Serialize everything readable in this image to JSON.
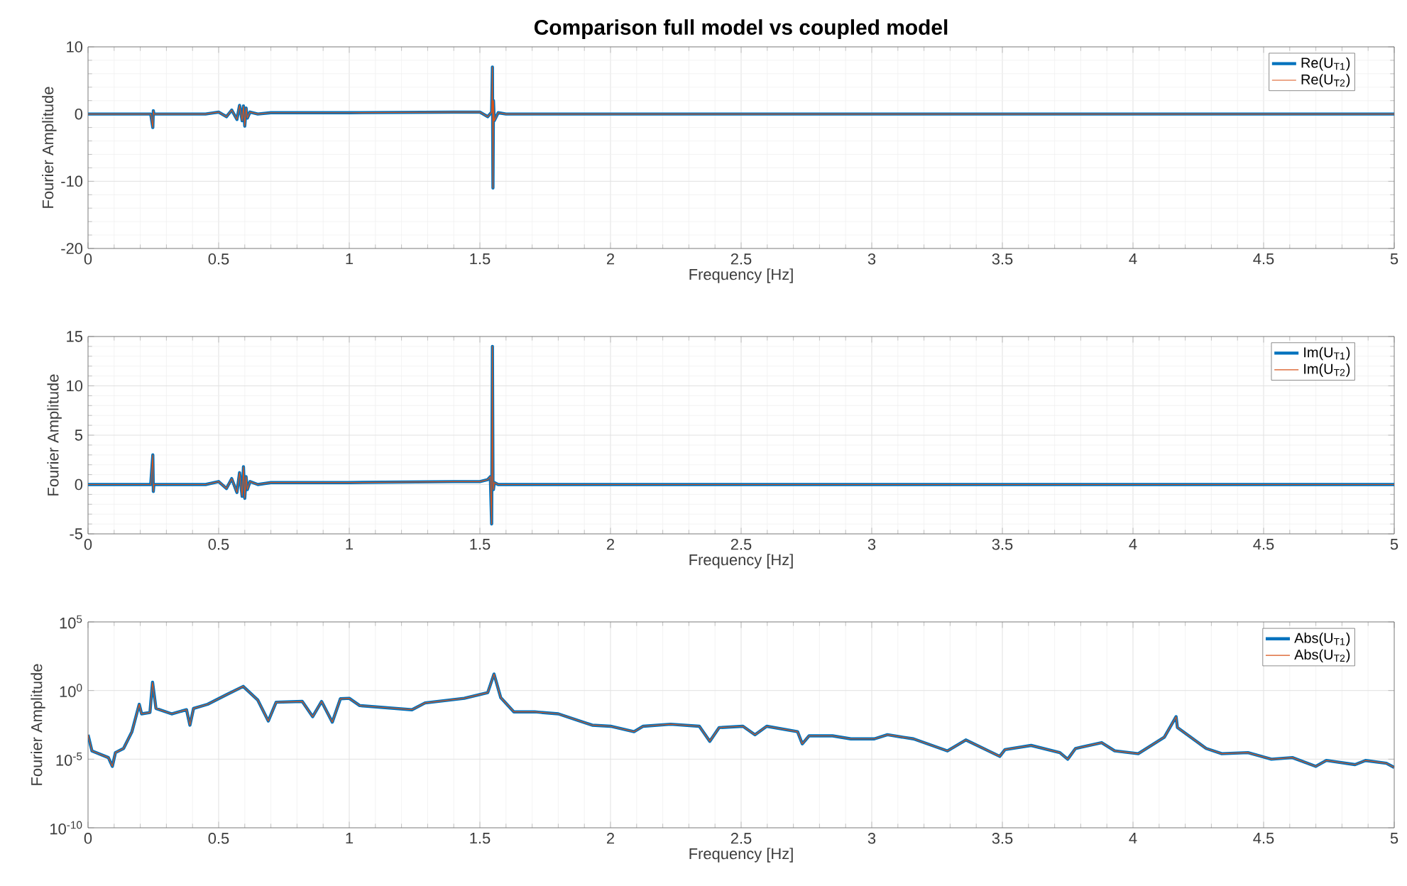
{
  "chart_data": [
    {
      "type": "line",
      "title": "Comparison full model vs coupled model",
      "xlabel": "Frequency [Hz]",
      "ylabel": "Fourier Amplitude",
      "xlim": [
        0,
        5
      ],
      "ylim": [
        -20,
        10
      ],
      "xticks": [
        0,
        0.5,
        1,
        1.5,
        2,
        2.5,
        3,
        3.5,
        4,
        4.5,
        5
      ],
      "yticks": [
        -20,
        -10,
        0,
        10
      ],
      "grid": true,
      "legend": "top right",
      "marker": "none",
      "line_style": "solid",
      "x": [
        0,
        0.24,
        0.248,
        0.25,
        0.252,
        0.26,
        0.45,
        0.5,
        0.53,
        0.55,
        0.57,
        0.58,
        0.59,
        0.595,
        0.6,
        0.605,
        0.61,
        0.62,
        0.65,
        0.7,
        1.0,
        1.4,
        1.5,
        1.53,
        1.545,
        1.548,
        1.55,
        1.552,
        1.555,
        1.57,
        1.6,
        2,
        3,
        4,
        5
      ],
      "series": [
        {
          "name": "Re(U$_{T1}$)",
          "color": "#0072bd",
          "values": [
            0,
            0,
            -2,
            0.5,
            0,
            0,
            0,
            0.3,
            -0.4,
            0.6,
            -0.8,
            1.3,
            -1.0,
            1.2,
            -1.8,
            0.9,
            -0.6,
            0.3,
            0,
            0.2,
            0.2,
            0.3,
            0.3,
            -0.4,
            0.3,
            7,
            -11,
            2,
            -1,
            0.2,
            0,
            0,
            0,
            0,
            0
          ]
        },
        {
          "name": "Re(U$_{T2}$)",
          "color": "#d95319",
          "values": [
            0,
            0,
            -2,
            0.5,
            0,
            0,
            0,
            0.3,
            -0.4,
            0.6,
            -0.8,
            1.3,
            -1.0,
            1.2,
            -1.8,
            0.9,
            -0.6,
            0.3,
            0,
            0.2,
            0.2,
            0.3,
            0.3,
            -0.4,
            0.3,
            7,
            -11,
            2,
            -1,
            0.2,
            0,
            0,
            0,
            0,
            0
          ]
        }
      ]
    },
    {
      "type": "line",
      "xlabel": "Frequency [Hz]",
      "ylabel": "Fourier Amplitude",
      "xlim": [
        0,
        5
      ],
      "ylim": [
        -5,
        15
      ],
      "xticks": [
        0,
        0.5,
        1,
        1.5,
        2,
        2.5,
        3,
        3.5,
        4,
        4.5,
        5
      ],
      "yticks": [
        -5,
        0,
        5,
        10,
        15
      ],
      "grid": true,
      "legend": "top right",
      "marker": "none",
      "line_style": "solid",
      "x": [
        0,
        0.24,
        0.248,
        0.25,
        0.252,
        0.26,
        0.45,
        0.5,
        0.53,
        0.55,
        0.57,
        0.58,
        0.59,
        0.595,
        0.6,
        0.605,
        0.61,
        0.62,
        0.65,
        0.7,
        1.0,
        1.4,
        1.5,
        1.53,
        1.54,
        1.545,
        1.548,
        1.55,
        1.552,
        1.555,
        1.57,
        1.6,
        2,
        3,
        4,
        5
      ],
      "series": [
        {
          "name": "Im(U$_{T1}$)",
          "color": "#0072bd",
          "values": [
            0,
            0,
            3,
            -0.7,
            0,
            0,
            0,
            0.3,
            -0.4,
            0.6,
            -0.8,
            1.2,
            -1.2,
            1.8,
            -1.4,
            0.8,
            -0.5,
            0.3,
            0,
            0.2,
            0.2,
            0.3,
            0.3,
            0.5,
            0.8,
            -4,
            14,
            0.5,
            -0.5,
            0.2,
            0,
            0,
            0,
            0,
            0,
            0
          ]
        },
        {
          "name": "Im(U$_{T2}$)",
          "color": "#d95319",
          "values": [
            0,
            0,
            3,
            -0.7,
            0,
            0,
            0,
            0.3,
            -0.4,
            0.6,
            -0.8,
            1.2,
            -1.2,
            1.8,
            -1.4,
            0.8,
            -0.5,
            0.3,
            0,
            0.2,
            0.2,
            0.3,
            0.3,
            0.5,
            0.8,
            -4,
            14,
            0.5,
            -0.5,
            0.2,
            0,
            0,
            0,
            0,
            0,
            0
          ]
        }
      ]
    },
    {
      "type": "line",
      "xlabel": "Frequency [Hz]",
      "ylabel": "Fourier Amplitude",
      "xlim": [
        0,
        5
      ],
      "ylim": [
        1e-10,
        100000
      ],
      "log": "y",
      "xticks": [
        0,
        0.5,
        1,
        1.5,
        2,
        2.5,
        3,
        3.5,
        4,
        4.5,
        5
      ],
      "yticks": [
        {
          "value": 1e-10,
          "label": "10$^{-10}$"
        },
        {
          "value": 1e-05,
          "label": "10$^{-5}$"
        },
        {
          "value": 1,
          "label": "10$^{0}$"
        },
        {
          "value": 100000,
          "label": "10$^{5}$"
        }
      ],
      "grid": true,
      "legend": "top right",
      "marker": "none",
      "line_style": "solid",
      "x": [
        0,
        0.015,
        0.078,
        0.093,
        0.105,
        0.136,
        0.168,
        0.196,
        0.205,
        0.237,
        0.247,
        0.26,
        0.32,
        0.377,
        0.39,
        0.404,
        0.458,
        0.53,
        0.594,
        0.65,
        0.69,
        0.72,
        0.82,
        0.86,
        0.894,
        0.935,
        0.966,
        1.0,
        1.04,
        1.24,
        1.29,
        1.44,
        1.53,
        1.554,
        1.58,
        1.63,
        1.71,
        1.8,
        1.93,
        2.0,
        2.09,
        2.125,
        2.23,
        2.34,
        2.38,
        2.416,
        2.507,
        2.553,
        2.598,
        2.716,
        2.734,
        2.76,
        2.85,
        2.92,
        3.01,
        3.06,
        3.16,
        3.29,
        3.36,
        3.49,
        3.51,
        3.61,
        3.72,
        3.75,
        3.78,
        3.88,
        3.93,
        4.02,
        4.12,
        4.165,
        4.17,
        4.28,
        4.34,
        4.44,
        4.53,
        4.61,
        4.7,
        4.74,
        4.85,
        4.89,
        4.97,
        5.0
      ],
      "series": [
        {
          "name": "Abs(U$_{T1}$)",
          "color": "#0072bd",
          "values": [
            0.0006,
            4e-05,
            1.3e-05,
            3e-06,
            3e-05,
            6e-05,
            0.001,
            0.1,
            0.02,
            0.025,
            4,
            0.05,
            0.02,
            0.04,
            0.003,
            0.05,
            0.1,
            0.5,
            2,
            0.2,
            0.006,
            0.14,
            0.16,
            0.0125,
            0.16,
            0.005,
            0.25,
            0.27,
            0.08,
            0.04,
            0.125,
            0.27,
            0.7,
            16,
            0.3,
            0.028,
            0.028,
            0.02,
            0.003,
            0.0025,
            0.001,
            0.0025,
            0.0035,
            0.0025,
            0.0002,
            0.002,
            0.0025,
            0.0006,
            0.0025,
            0.001,
            0.00013,
            0.0005,
            0.0005,
            0.0003,
            0.0003,
            0.0006,
            0.0003,
            4e-05,
            0.00025,
            1.6e-05,
            5e-05,
            0.0001,
            3e-05,
            1e-05,
            6e-05,
            0.00016,
            4e-05,
            2.5e-05,
            0.0004,
            0.0125,
            0.002,
            6e-05,
            2.5e-05,
            3e-05,
            1e-05,
            1.3e-05,
            3e-06,
            8e-06,
            4e-06,
            8e-06,
            5e-06,
            2.5e-06
          ]
        },
        {
          "name": "Abs(U$_{T2}$)",
          "color": "#d95319",
          "values": [
            0.0006,
            4e-05,
            1.3e-05,
            3e-06,
            3e-05,
            6e-05,
            0.001,
            0.1,
            0.02,
            0.025,
            4,
            0.05,
            0.02,
            0.04,
            0.003,
            0.05,
            0.1,
            0.5,
            2,
            0.2,
            0.006,
            0.14,
            0.16,
            0.0125,
            0.16,
            0.005,
            0.25,
            0.27,
            0.08,
            0.04,
            0.125,
            0.27,
            0.7,
            16,
            0.3,
            0.028,
            0.028,
            0.02,
            0.003,
            0.0025,
            0.001,
            0.0025,
            0.0035,
            0.0025,
            0.0002,
            0.002,
            0.0025,
            0.0006,
            0.0025,
            0.001,
            0.00013,
            0.0005,
            0.0005,
            0.0003,
            0.0003,
            0.0006,
            0.0003,
            4e-05,
            0.00025,
            1.6e-05,
            5e-05,
            0.0001,
            3e-05,
            1e-05,
            6e-05,
            0.00016,
            4e-05,
            2.5e-05,
            0.0004,
            0.0125,
            0.002,
            6e-05,
            2.5e-05,
            3e-05,
            1e-05,
            1.3e-05,
            3e-06,
            8e-06,
            4e-06,
            8e-06,
            5e-06,
            2.5e-06
          ]
        }
      ]
    }
  ]
}
